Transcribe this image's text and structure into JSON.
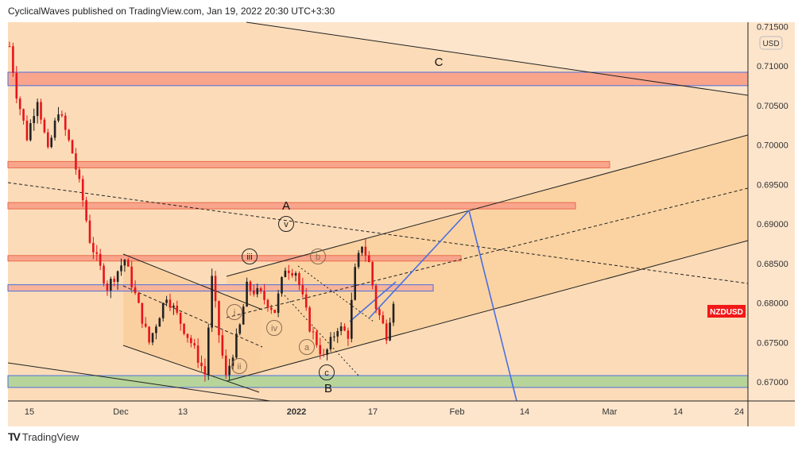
{
  "header": "CyclicalWaves published on TradingView.com, Jan 19, 2022 20:30 UTC+3:30",
  "footer": {
    "brand": "TradingView",
    "logo": "TV"
  },
  "colors": {
    "bg": "#fde5cc",
    "channel": "#fbd3a2",
    "zone_red": "#f8a58c",
    "zone_green": "#b7d49a",
    "blue": "#4a6fe0",
    "up": "#222222",
    "down": "#e8141a",
    "tag": "#f21818"
  },
  "chart_data": {
    "type": "candlestick",
    "symbol_tag": "NZDUSD",
    "currency": "USD",
    "ylim": [
      0.666,
      0.7155
    ],
    "y_ticks": [
      "0.71500",
      "0.71000",
      "0.70500",
      "0.70000",
      "0.69500",
      "0.69000",
      "0.68500",
      "0.68000",
      "0.67500",
      "0.67000"
    ],
    "x_ticks": [
      "15",
      "Dec",
      "13",
      "2022",
      "17",
      "Feb",
      "14",
      "Mar",
      "14",
      "24"
    ],
    "close_path": [
      [
        0,
        0.7125
      ],
      [
        2,
        0.7065
      ],
      [
        5,
        0.701
      ],
      [
        8,
        0.706
      ],
      [
        11,
        0.699
      ],
      [
        14,
        0.7045
      ],
      [
        18,
        0.699
      ],
      [
        21,
        0.693
      ],
      [
        23,
        0.688
      ],
      [
        25,
        0.6855
      ],
      [
        28,
        0.682
      ],
      [
        33,
        0.6855
      ],
      [
        40,
        0.675
      ],
      [
        45,
        0.681
      ],
      [
        52,
        0.675
      ],
      [
        56,
        0.671
      ],
      [
        58,
        0.683
      ],
      [
        60,
        0.676
      ],
      [
        62,
        0.6705
      ],
      [
        66,
        0.677
      ],
      [
        68,
        0.682
      ],
      [
        72,
        0.681
      ],
      [
        76,
        0.679
      ],
      [
        79,
        0.6845
      ],
      [
        82,
        0.684
      ],
      [
        86,
        0.677
      ],
      [
        90,
        0.673
      ],
      [
        94,
        0.677
      ],
      [
        97,
        0.676
      ],
      [
        99,
        0.684
      ],
      [
        101,
        0.6875
      ],
      [
        103,
        0.685
      ],
      [
        105,
        0.6795
      ],
      [
        108,
        0.676
      ],
      [
        110,
        0.6805
      ]
    ],
    "zones": [
      {
        "top": 0.7092,
        "bottom": 0.7075,
        "kind": "red"
      },
      {
        "top": 0.6979,
        "bottom": 0.6971,
        "kind": "red"
      },
      {
        "top": 0.6927,
        "bottom": 0.6919,
        "kind": "red"
      },
      {
        "top": 0.686,
        "bottom": 0.6853,
        "kind": "red"
      },
      {
        "top": 0.6823,
        "bottom": 0.6815,
        "kind": "blue"
      },
      {
        "top": 0.6708,
        "bottom": 0.6693,
        "kind": "green"
      }
    ],
    "wave_labels": {
      "big": [
        "C",
        "A",
        "B"
      ],
      "circled": [
        "v",
        "iii",
        "b",
        "i",
        "iv",
        "a",
        "ii",
        "c"
      ]
    }
  }
}
